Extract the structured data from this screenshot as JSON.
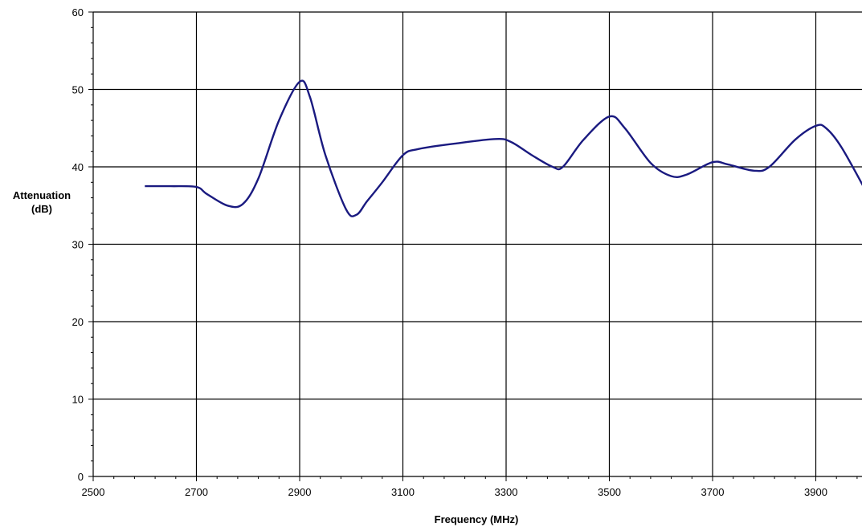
{
  "chart_data": {
    "type": "line",
    "title": "",
    "xlabel": "Frequency (MHz)",
    "ylabel": [
      "Attenuation",
      "(dB)"
    ],
    "xlim": [
      2500,
      4000
    ],
    "ylim": [
      0,
      60
    ],
    "x_ticks": [
      2500,
      2700,
      2900,
      3100,
      3300,
      3500,
      3700,
      3900
    ],
    "y_ticks": [
      0,
      10,
      20,
      30,
      40,
      50,
      60
    ],
    "grid": true,
    "legend": "none",
    "series": [
      {
        "color": "#1a1a80",
        "x": [
          2600,
          2650,
          2700,
          2720,
          2760,
          2790,
          2820,
          2860,
          2900,
          2920,
          2950,
          2990,
          3010,
          3030,
          3060,
          3100,
          3130,
          3200,
          3280,
          3310,
          3350,
          3390,
          3410,
          3450,
          3500,
          3530,
          3580,
          3620,
          3650,
          3700,
          3730,
          3780,
          3810,
          3860,
          3900,
          3920,
          3950,
          4000
        ],
        "y": [
          37.5,
          37.5,
          37.4,
          36.5,
          35.0,
          35.2,
          38.5,
          46.0,
          51.0,
          49.0,
          41.5,
          34.5,
          33.8,
          35.5,
          38.0,
          41.5,
          42.3,
          43.0,
          43.6,
          43.2,
          41.5,
          40.0,
          40.0,
          43.5,
          46.5,
          45.0,
          40.5,
          38.8,
          39.0,
          40.6,
          40.3,
          39.5,
          40.0,
          43.5,
          45.3,
          45.0,
          42.5,
          36.5
        ]
      }
    ]
  }
}
